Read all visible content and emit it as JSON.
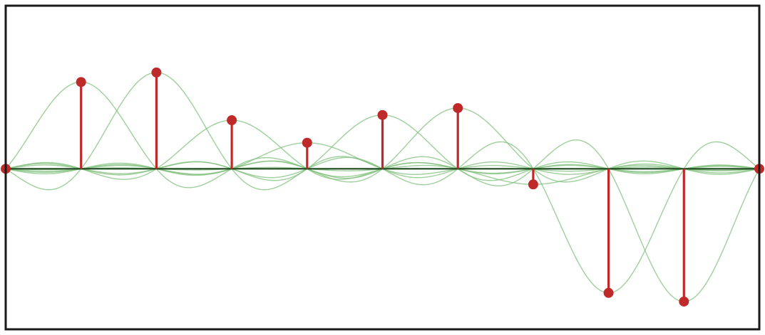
{
  "chart_data": {
    "type": "stem",
    "title": "",
    "xlabel": "",
    "ylabel": "",
    "x": [
      0,
      1,
      2,
      3,
      4,
      5,
      6,
      7,
      8,
      9,
      10
    ],
    "values": [
      0,
      1.0,
      1.11,
      0.56,
      0.3,
      0.62,
      0.7,
      -0.18,
      -1.43,
      -1.53,
      0
    ],
    "xlim": [
      0,
      10
    ],
    "ylim": [
      -1.85,
      1.88
    ],
    "grid": false,
    "legend": "none",
    "reconstruction_kernel": "sinc",
    "colors": {
      "stem": "#c0292a",
      "marker": "#c0292a",
      "kernel_curves": "#7fbf7b",
      "sum_curve": "#1f4a1f",
      "frame": "#1a1a1a",
      "background": "#ffffff"
    }
  }
}
